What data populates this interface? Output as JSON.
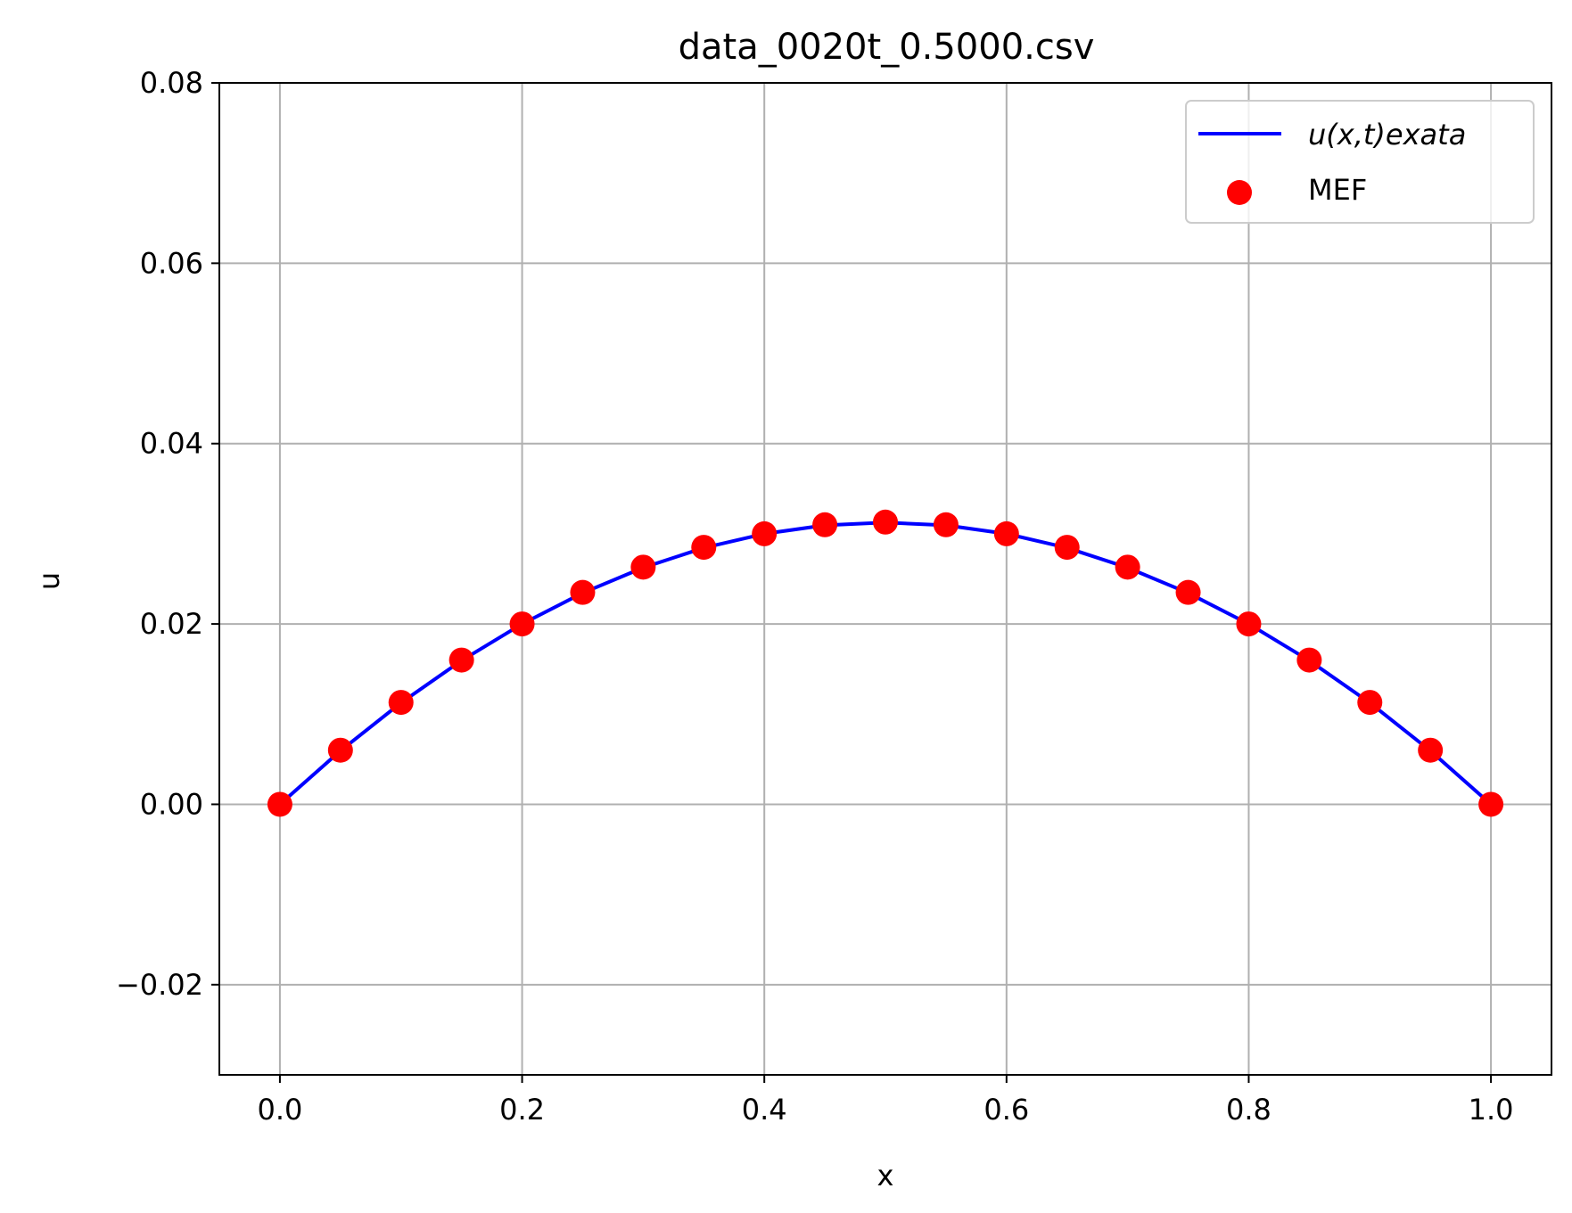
{
  "chart_data": {
    "type": "line",
    "title": "data_0020t_0.5000.csv",
    "xlabel": "x",
    "ylabel": "u",
    "xlim": [
      -0.05,
      1.05
    ],
    "ylim": [
      -0.03,
      0.08
    ],
    "x_ticks": [
      0.0,
      0.2,
      0.4,
      0.6,
      0.8,
      1.0
    ],
    "x_tick_labels": [
      "0.0",
      "0.2",
      "0.4",
      "0.6",
      "0.8",
      "1.0"
    ],
    "y_ticks": [
      -0.02,
      0.0,
      0.02,
      0.04,
      0.06,
      0.08
    ],
    "y_tick_labels": [
      "−0.02",
      "0.00",
      "0.02",
      "0.04",
      "0.06",
      "0.08"
    ],
    "grid": true,
    "legend_position": "top-right",
    "series": [
      {
        "name": "u(x,t)exata",
        "kind": "line",
        "color": "#0000ff",
        "x": [
          0.0,
          0.05,
          0.1,
          0.15,
          0.2,
          0.25,
          0.3,
          0.35,
          0.4,
          0.45,
          0.5,
          0.55,
          0.6,
          0.65,
          0.7,
          0.75,
          0.8,
          0.85,
          0.9,
          0.95,
          1.0
        ],
        "y": [
          0.0,
          0.00594,
          0.01125,
          0.01594,
          0.02,
          0.02344,
          0.02625,
          0.02844,
          0.03,
          0.03094,
          0.03125,
          0.03094,
          0.03,
          0.02844,
          0.02625,
          0.02344,
          0.02,
          0.01594,
          0.01125,
          0.00594,
          0.0
        ]
      },
      {
        "name": "MEF",
        "kind": "scatter",
        "color": "#ff0000",
        "x": [
          0.0,
          0.05,
          0.1,
          0.15,
          0.2,
          0.25,
          0.3,
          0.35,
          0.4,
          0.45,
          0.5,
          0.55,
          0.6,
          0.65,
          0.7,
          0.75,
          0.8,
          0.85,
          0.9,
          0.95,
          1.0
        ],
        "y": [
          0.0,
          0.006,
          0.0113,
          0.016,
          0.02,
          0.0235,
          0.0263,
          0.0285,
          0.03,
          0.031,
          0.0313,
          0.031,
          0.03,
          0.0285,
          0.0263,
          0.0235,
          0.02,
          0.016,
          0.0113,
          0.006,
          0.0
        ]
      }
    ]
  }
}
